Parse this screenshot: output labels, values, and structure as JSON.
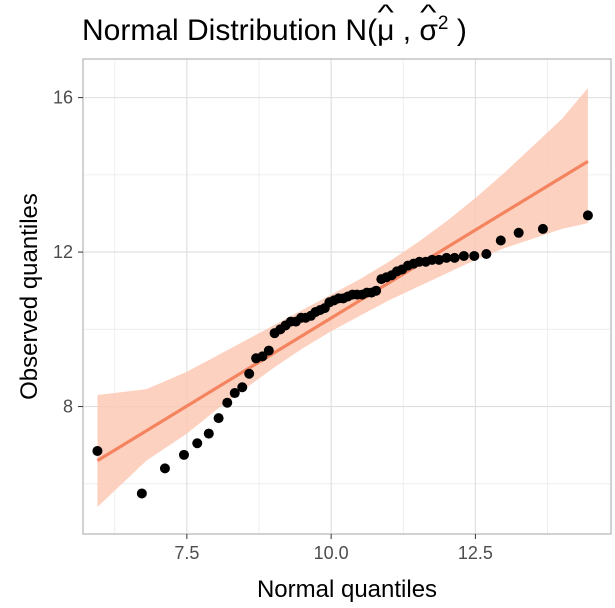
{
  "chart_data": {
    "type": "scatter",
    "title_prefix": "Normal Distribution N(",
    "title_mu": "μ",
    "title_sep": " , ",
    "title_sigma": "σ",
    "title_sup": "2",
    "title_suffix": " )",
    "xlabel": "Normal quantiles",
    "ylabel": "Observed quantiles",
    "xlim": [
      5.7,
      14.85
    ],
    "ylim": [
      4.7,
      17.0
    ],
    "xticks": [
      7.5,
      10.0,
      12.5
    ],
    "xtick_labels": [
      "7.5",
      "10.0",
      "12.5"
    ],
    "yticks": [
      8,
      12,
      16
    ],
    "ytick_labels": [
      "8",
      "12",
      "16"
    ],
    "grid": true,
    "points_color": "#000000",
    "line_color": "#f4845f",
    "band_color": "#fdc9b5",
    "points": [
      [
        5.95,
        6.85
      ],
      [
        6.72,
        5.75
      ],
      [
        7.12,
        6.4
      ],
      [
        7.45,
        6.75
      ],
      [
        7.68,
        7.05
      ],
      [
        7.88,
        7.3
      ],
      [
        8.05,
        7.7
      ],
      [
        8.2,
        8.1
      ],
      [
        8.33,
        8.35
      ],
      [
        8.46,
        8.5
      ],
      [
        8.58,
        8.85
      ],
      [
        8.7,
        9.25
      ],
      [
        8.81,
        9.3
      ],
      [
        8.92,
        9.45
      ],
      [
        9.02,
        9.9
      ],
      [
        9.12,
        10.0
      ],
      [
        9.21,
        10.1
      ],
      [
        9.3,
        10.2
      ],
      [
        9.39,
        10.2
      ],
      [
        9.48,
        10.3
      ],
      [
        9.56,
        10.3
      ],
      [
        9.65,
        10.35
      ],
      [
        9.73,
        10.45
      ],
      [
        9.81,
        10.5
      ],
      [
        9.89,
        10.55
      ],
      [
        9.97,
        10.7
      ],
      [
        10.05,
        10.75
      ],
      [
        10.13,
        10.8
      ],
      [
        10.21,
        10.8
      ],
      [
        10.29,
        10.85
      ],
      [
        10.37,
        10.9
      ],
      [
        10.45,
        10.9
      ],
      [
        10.54,
        10.9
      ],
      [
        10.62,
        10.95
      ],
      [
        10.7,
        10.95
      ],
      [
        10.78,
        11.0
      ],
      [
        10.87,
        11.3
      ],
      [
        10.96,
        11.35
      ],
      [
        11.05,
        11.4
      ],
      [
        11.14,
        11.5
      ],
      [
        11.23,
        11.55
      ],
      [
        11.33,
        11.65
      ],
      [
        11.43,
        11.7
      ],
      [
        11.53,
        11.75
      ],
      [
        11.64,
        11.75
      ],
      [
        11.75,
        11.8
      ],
      [
        11.87,
        11.8
      ],
      [
        12.0,
        11.85
      ],
      [
        12.14,
        11.85
      ],
      [
        12.3,
        11.9
      ],
      [
        12.48,
        11.9
      ],
      [
        12.69,
        11.95
      ],
      [
        12.94,
        12.3
      ],
      [
        13.25,
        12.5
      ],
      [
        13.67,
        12.6
      ],
      [
        14.45,
        12.95
      ]
    ],
    "fit_line": [
      [
        5.95,
        6.6
      ],
      [
        14.45,
        14.35
      ]
    ],
    "band": [
      [
        5.95,
        5.4,
        8.3
      ],
      [
        6.8,
        6.6,
        8.45
      ],
      [
        7.5,
        7.3,
        8.9
      ],
      [
        8.0,
        7.9,
        9.3
      ],
      [
        8.5,
        8.45,
        9.7
      ],
      [
        9.0,
        9.0,
        10.1
      ],
      [
        9.5,
        9.5,
        10.5
      ],
      [
        10.0,
        9.95,
        10.9
      ],
      [
        10.5,
        10.35,
        11.3
      ],
      [
        11.0,
        10.75,
        11.75
      ],
      [
        11.5,
        11.1,
        12.25
      ],
      [
        12.0,
        11.45,
        12.8
      ],
      [
        12.5,
        11.8,
        13.4
      ],
      [
        13.0,
        12.1,
        14.05
      ],
      [
        13.5,
        12.35,
        14.75
      ],
      [
        14.0,
        12.6,
        15.45
      ],
      [
        14.45,
        12.75,
        16.25
      ]
    ]
  }
}
